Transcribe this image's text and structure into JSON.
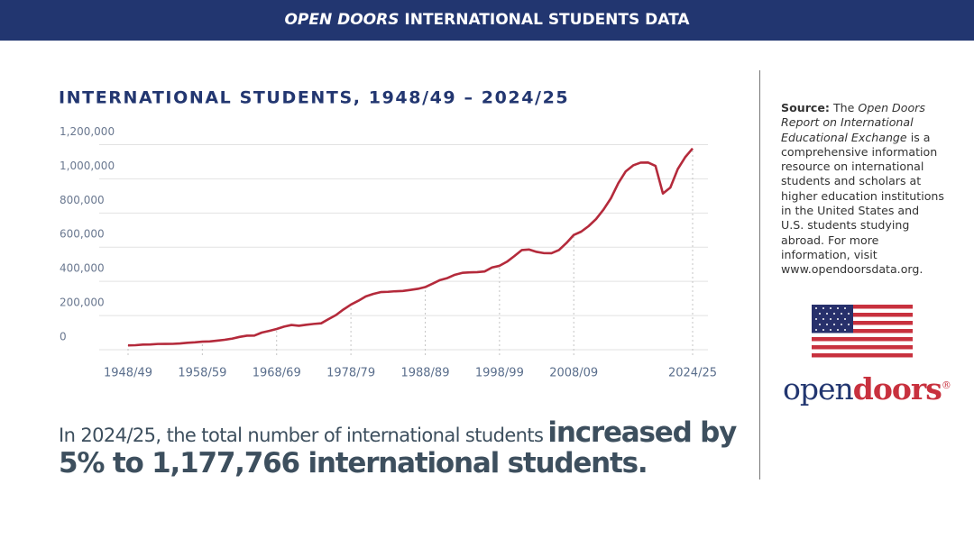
{
  "header": {
    "title_italic": "OPEN DOORS",
    "title_rest": "INTERNATIONAL STUDENTS DATA"
  },
  "chart_data": {
    "type": "line",
    "title": "INTERNATIONAL STUDENTS, 1948/49 – 2024/25",
    "color": "#b42a3b",
    "grid": true,
    "categories": [
      "1948/49",
      null,
      null,
      null,
      null,
      null,
      null,
      null,
      null,
      null,
      "1958/59",
      null,
      null,
      null,
      null,
      null,
      null,
      null,
      null,
      null,
      "1968/69",
      null,
      null,
      null,
      null,
      null,
      null,
      null,
      null,
      null,
      "1978/79",
      null,
      null,
      null,
      null,
      null,
      null,
      null,
      null,
      null,
      "1988/89",
      null,
      null,
      null,
      null,
      null,
      null,
      null,
      null,
      null,
      "1998/99",
      null,
      null,
      null,
      null,
      null,
      null,
      null,
      null,
      null,
      "2008/09",
      null,
      null,
      null,
      null,
      null,
      null,
      null,
      null,
      null,
      null,
      null,
      null,
      null,
      null,
      null,
      "2024/25"
    ],
    "values": [
      25464,
      26433,
      29813,
      30462,
      33675,
      33833,
      34232,
      36494,
      40666,
      43391,
      47245,
      48486,
      53107,
      58086,
      64705,
      74814,
      82045,
      82709,
      100262,
      110315,
      121362,
      134959,
      144708,
      140126,
      146097,
      151066,
      154580,
      179344,
      203068,
      235509,
      263938,
      286343,
      311882,
      326299,
      336985,
      338894,
      342113,
      343777,
      349609,
      356187,
      366354,
      386851,
      407529,
      419585,
      438618,
      449749,
      452653,
      453787,
      457984,
      481280,
      490933,
      514723,
      547867,
      582996,
      586323,
      572509,
      565039,
      564766,
      582984,
      623805,
      671616,
      690923,
      723277,
      764495,
      819644,
      886052,
      974926,
      1043839,
      1078822,
      1094792,
      1095299,
      1075496,
      914095,
      948519,
      1057188,
      1126690,
      1177766
    ],
    "ylim": [
      0,
      1250000
    ],
    "yticks": [
      0,
      {
        "value": 200000,
        "label": "200,000"
      },
      {
        "value": 400000,
        "label": "400,000"
      },
      {
        "value": 600000,
        "label": "600,000"
      },
      {
        "value": 800000,
        "label": "800,000"
      },
      {
        "value": 1000000,
        "label": "1,000,000"
      },
      {
        "value": 1200000,
        "label": "1,200,000"
      }
    ]
  },
  "statement": {
    "lead": "In 2024/25, the total number of international students",
    "highlight_1": "increased by",
    "highlight_2": "5% to 1,177,766 international students."
  },
  "source": {
    "label": "Source:",
    "text_1": "The",
    "italic": "Open Doors Report on International Educational Exchange",
    "text_2": "is a comprehensive information resource on international students and scholars at higher education institutions in the United States and U.S. students studying abroad. For more information, visit www.opendoorsdata.org."
  },
  "logo": {
    "part_1": "open",
    "part_2": "doors",
    "mark": "®"
  }
}
